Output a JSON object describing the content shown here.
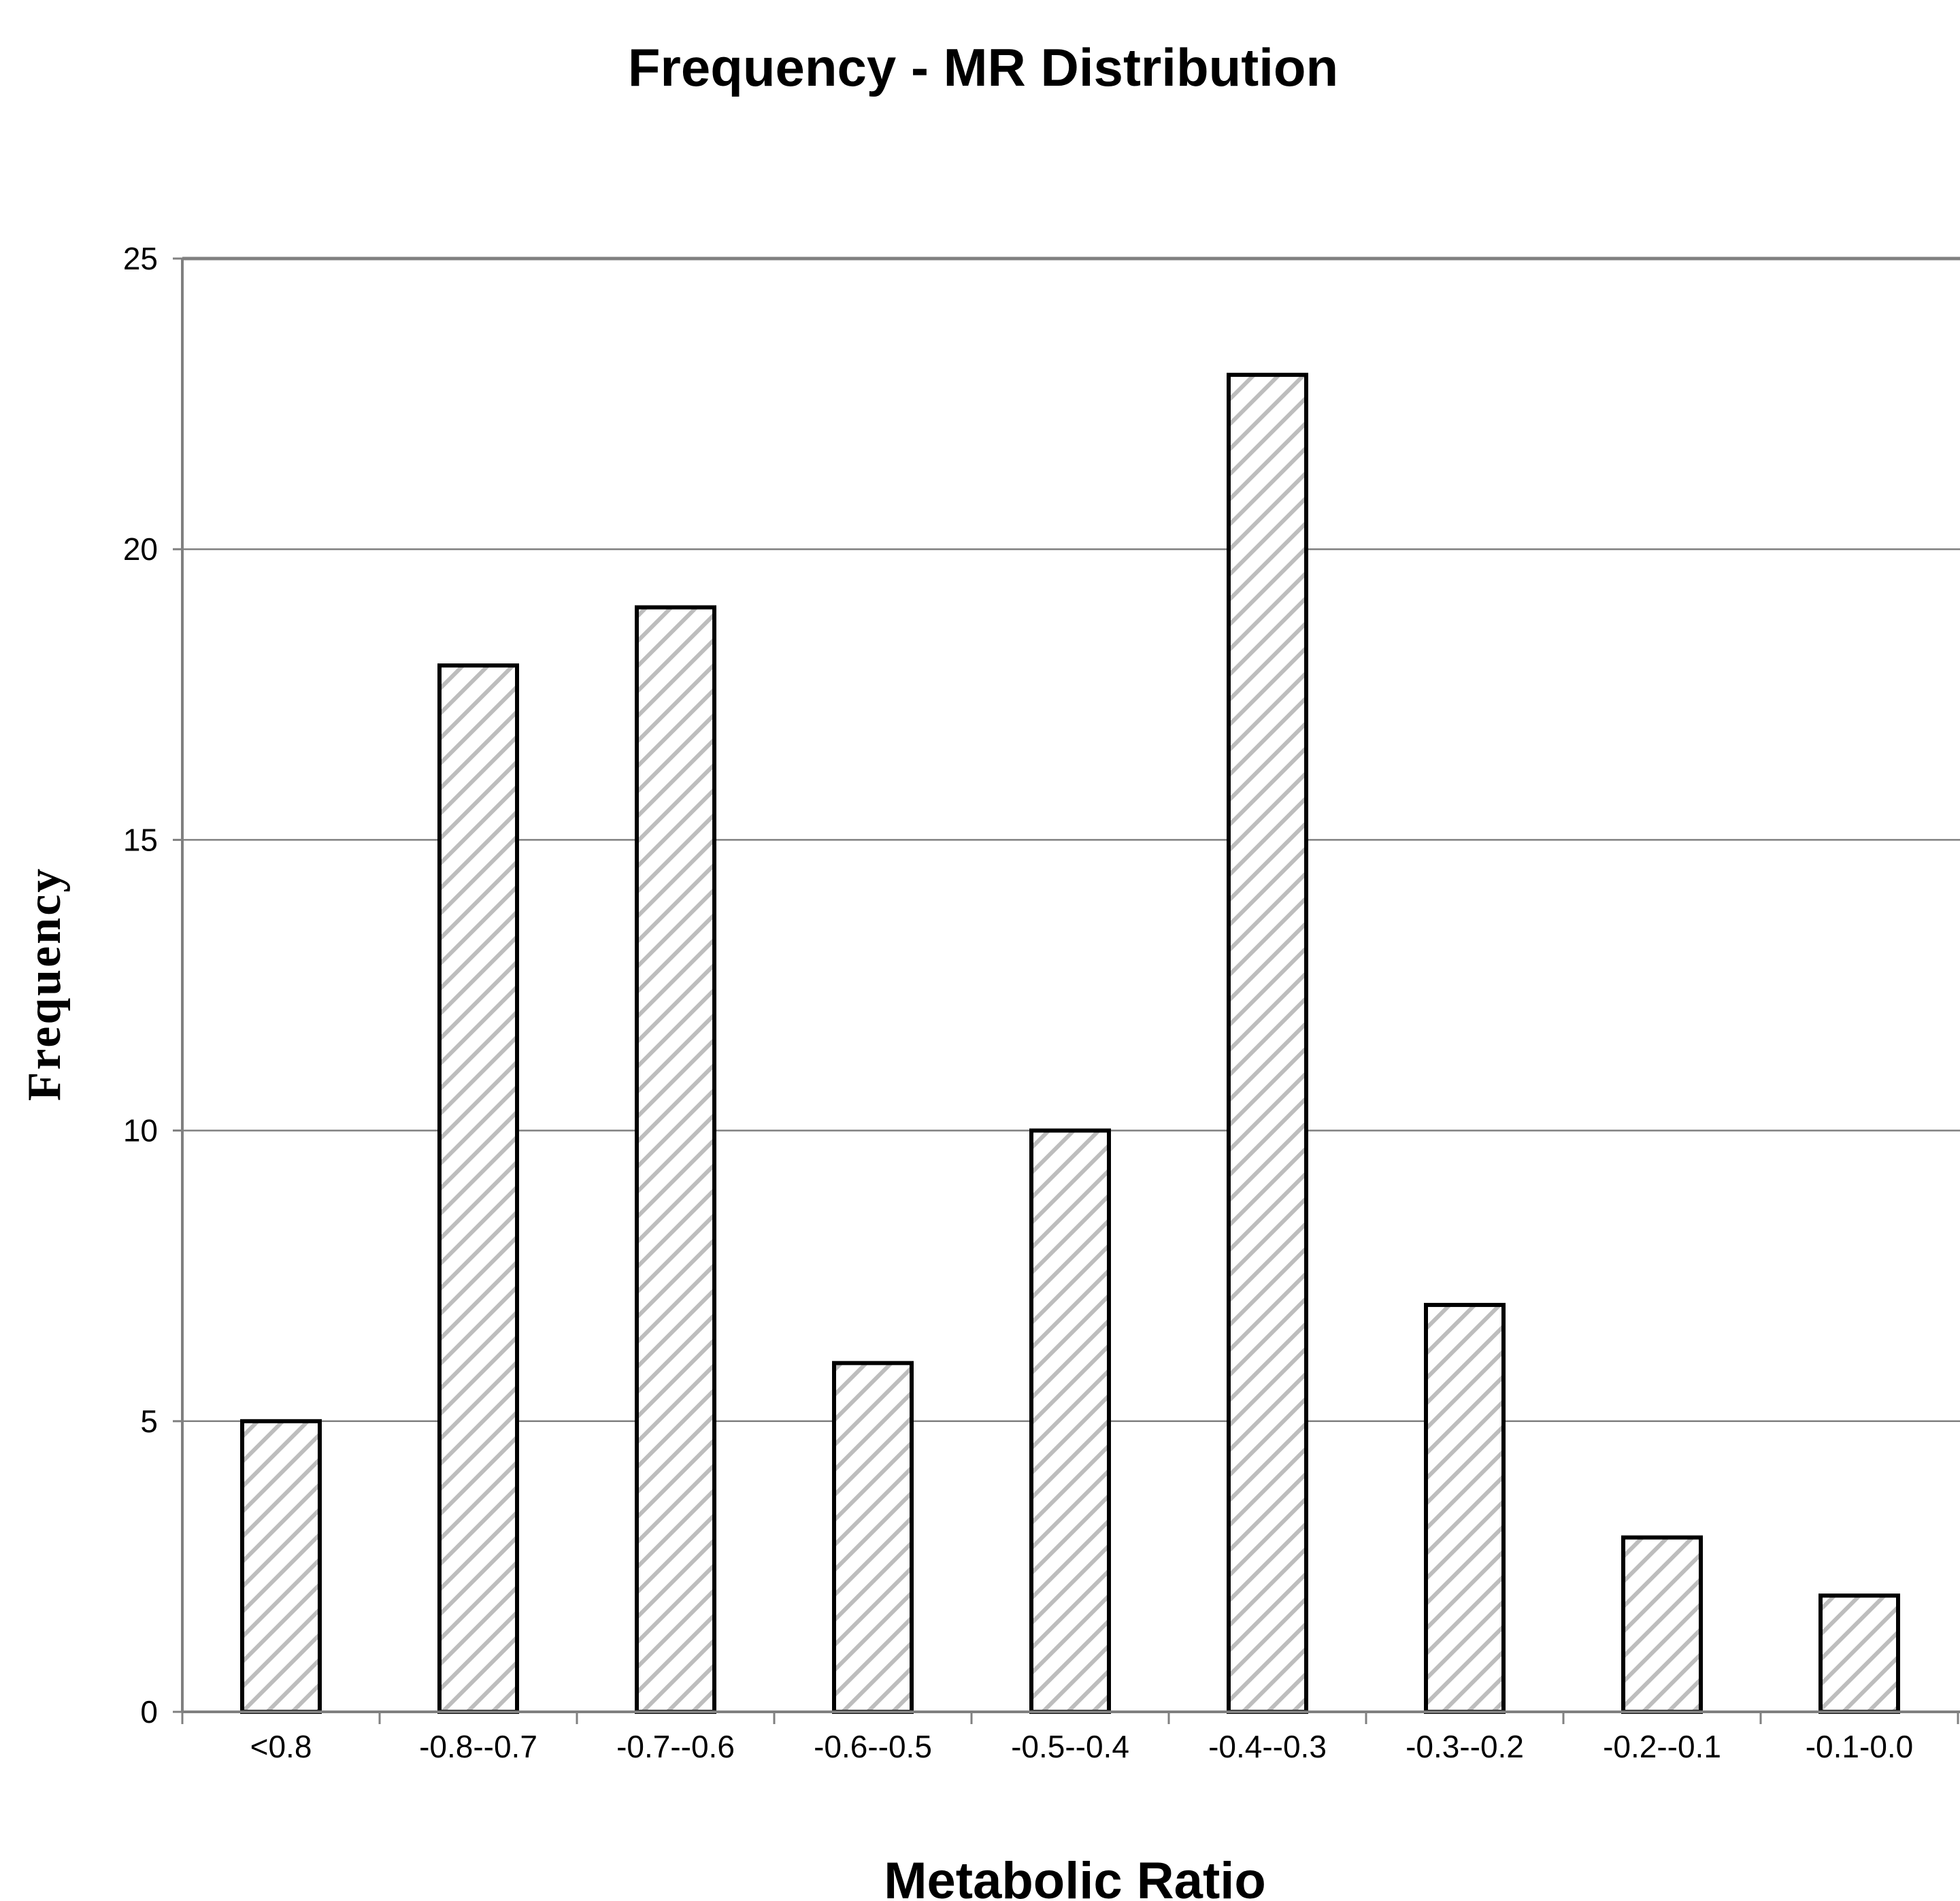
{
  "chart_data": {
    "type": "bar",
    "title": "Frequency - MR Distribution",
    "xlabel": "Metabolic Ratio",
    "ylabel": "Frequency",
    "categories": [
      "<0.8",
      "-0.8--0.7",
      "-0.7--0.6",
      "-0.6--0.5",
      "-0.5--0.4",
      "-0.4--0.3",
      "-0.3--0.2",
      "-0.2--0.1",
      "-0.1-0.0"
    ],
    "values": [
      5,
      18,
      19,
      6,
      10,
      23,
      7,
      3,
      2
    ],
    "ylim": [
      0,
      25
    ],
    "yticks": [
      0,
      5,
      10,
      15,
      20,
      25
    ],
    "grid": true,
    "colors": {
      "bar_fill": "#ffffff",
      "bar_hatch": "#bdbdbd",
      "bar_outline": "#000000",
      "gridline": "#808080",
      "axis": "#808080"
    }
  }
}
